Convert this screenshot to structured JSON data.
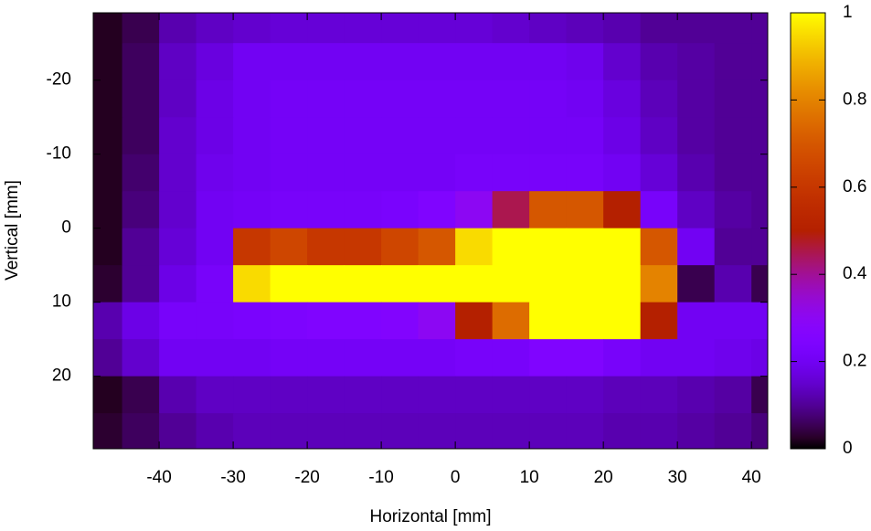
{
  "chart_data": {
    "type": "heatmap",
    "xlabel": "Horizontal [mm]",
    "ylabel": "Vertical [mm]",
    "xlim": [
      -48.9,
      42.2
    ],
    "ylim": [
      -29.1,
      29.8
    ],
    "y_inverted": true,
    "xticks": [
      -40,
      -30,
      -20,
      -10,
      0,
      10,
      20,
      30,
      40
    ],
    "yticks": [
      -20,
      -10,
      0,
      10,
      20
    ],
    "zlim": [
      0,
      1
    ],
    "zticks": [
      0,
      0.2,
      0.4,
      0.6,
      0.8,
      1
    ],
    "colormap": "gnuplot",
    "x": [
      -47.5,
      -42.5,
      -37.5,
      -32.5,
      -27.5,
      -22.5,
      -17.5,
      -12.5,
      -7.5,
      -2.5,
      2.5,
      7.5,
      12.5,
      17.5,
      22.5,
      27.5,
      32.5,
      37.5,
      42.5
    ],
    "y": [
      -27.5,
      -22.5,
      -17.5,
      -12.5,
      -7.5,
      -2.5,
      2.5,
      7.5,
      12.5,
      17.5,
      22.5,
      27.5
    ],
    "values": [
      [
        0.02,
        0.05,
        0.12,
        0.14,
        0.15,
        0.16,
        0.16,
        0.16,
        0.16,
        0.16,
        0.16,
        0.15,
        0.14,
        0.13,
        0.12,
        0.1,
        0.1,
        0.1,
        0.1
      ],
      [
        0.02,
        0.06,
        0.14,
        0.17,
        0.2,
        0.2,
        0.2,
        0.2,
        0.2,
        0.2,
        0.2,
        0.2,
        0.2,
        0.19,
        0.15,
        0.12,
        0.11,
        0.1,
        0.1
      ],
      [
        0.02,
        0.06,
        0.14,
        0.18,
        0.2,
        0.21,
        0.21,
        0.21,
        0.21,
        0.21,
        0.21,
        0.21,
        0.21,
        0.2,
        0.17,
        0.13,
        0.11,
        0.1,
        0.1
      ],
      [
        0.02,
        0.06,
        0.15,
        0.18,
        0.2,
        0.21,
        0.21,
        0.21,
        0.21,
        0.21,
        0.21,
        0.21,
        0.21,
        0.21,
        0.18,
        0.14,
        0.11,
        0.1,
        0.1
      ],
      [
        0.02,
        0.07,
        0.15,
        0.19,
        0.2,
        0.21,
        0.21,
        0.21,
        0.21,
        0.21,
        0.22,
        0.22,
        0.22,
        0.22,
        0.2,
        0.16,
        0.12,
        0.1,
        0.1
      ],
      [
        0.02,
        0.08,
        0.15,
        0.2,
        0.21,
        0.22,
        0.22,
        0.22,
        0.23,
        0.25,
        0.3,
        0.45,
        0.7,
        0.7,
        0.5,
        0.22,
        0.14,
        0.11,
        0.1
      ],
      [
        0.02,
        0.1,
        0.16,
        0.2,
        0.6,
        0.65,
        0.6,
        0.6,
        0.65,
        0.7,
        0.95,
        1,
        1,
        1,
        1,
        0.7,
        0.2,
        0.1,
        0.1
      ],
      [
        0.03,
        0.1,
        0.18,
        0.22,
        0.95,
        1,
        1,
        1,
        1,
        1,
        1,
        1,
        1,
        1,
        1,
        0.8,
        0.05,
        0.12,
        0.05
      ],
      [
        0.12,
        0.18,
        0.22,
        0.22,
        0.23,
        0.24,
        0.25,
        0.25,
        0.26,
        0.3,
        0.5,
        0.75,
        1,
        1,
        1,
        0.5,
        0.2,
        0.2,
        0.2
      ],
      [
        0.1,
        0.15,
        0.2,
        0.2,
        0.2,
        0.21,
        0.21,
        0.21,
        0.21,
        0.21,
        0.22,
        0.22,
        0.25,
        0.25,
        0.22,
        0.2,
        0.2,
        0.19,
        0.18
      ],
      [
        0.02,
        0.05,
        0.12,
        0.14,
        0.14,
        0.14,
        0.14,
        0.14,
        0.14,
        0.14,
        0.14,
        0.14,
        0.14,
        0.14,
        0.13,
        0.13,
        0.12,
        0.11,
        0.05
      ],
      [
        0.03,
        0.06,
        0.1,
        0.12,
        0.13,
        0.13,
        0.13,
        0.13,
        0.13,
        0.13,
        0.13,
        0.13,
        0.13,
        0.13,
        0.12,
        0.12,
        0.11,
        0.1,
        0.08
      ]
    ]
  }
}
